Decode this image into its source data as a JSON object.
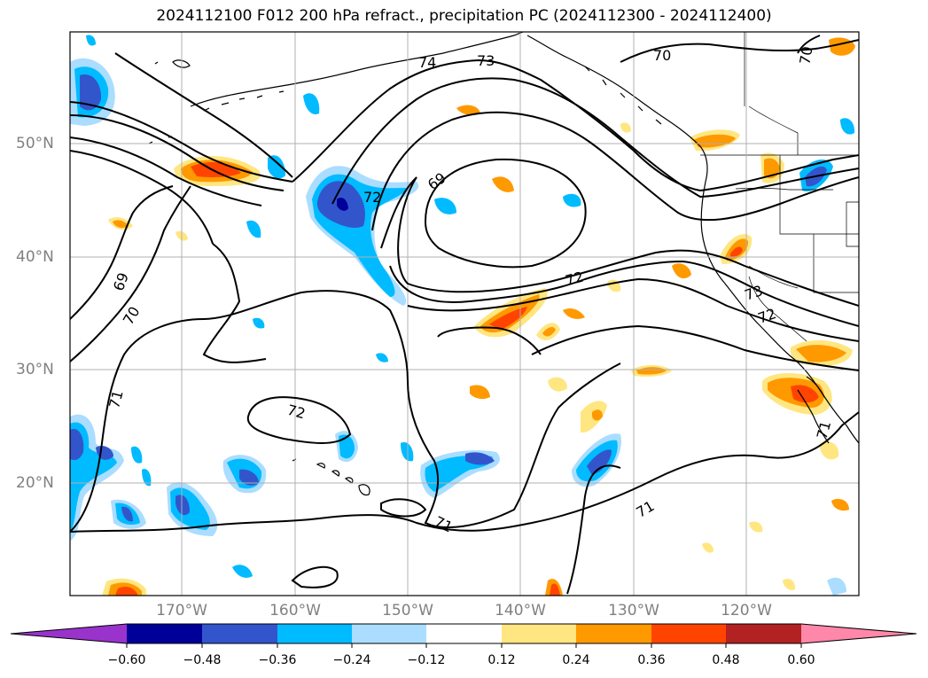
{
  "title": "2024112100 F012 200 hPa refract., precipitation PC (2024112300 - 2024112400)",
  "lat_labels": [
    "50°N",
    "40°N",
    "30°N",
    "20°N"
  ],
  "lon_labels": [
    "170°W",
    "160°W",
    "150°W",
    "140°W",
    "130°W",
    "120°W"
  ],
  "colorbar": {
    "levels": [
      "−0.60",
      "−0.48",
      "−0.36",
      "−0.24",
      "−0.12",
      "0.12",
      "0.24",
      "0.36",
      "0.48",
      "0.60"
    ],
    "colors": [
      "#9933cc",
      "#000099",
      "#3355cc",
      "#00bbff",
      "#aaddff",
      "#ffffff",
      "#ffe680",
      "#ff9900",
      "#ff4400",
      "#b22222",
      "#ff88aa"
    ]
  },
  "contour_labels": [
    "74",
    "73",
    "70",
    "70",
    "69",
    "72",
    "69",
    "70",
    "71",
    "72",
    "72",
    "73",
    "72",
    "71",
    "71",
    "71"
  ],
  "colors": {
    "contour": "#000000",
    "grid": "#b0b0b0",
    "tick_label": "#808080"
  }
}
